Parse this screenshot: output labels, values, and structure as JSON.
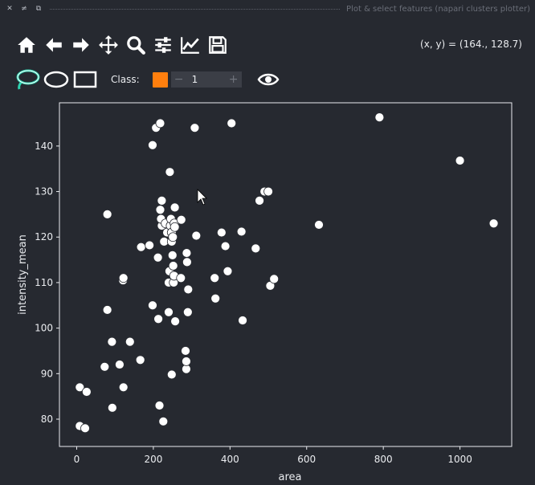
{
  "window": {
    "title": "Plot & select features (napari clusters plotter)",
    "buttons": [
      "✕",
      "≠",
      "⧉"
    ]
  },
  "toolbar": {
    "tools": [
      "home-icon",
      "back-arrow-icon",
      "forward-arrow-icon",
      "pan-icon",
      "zoom-icon",
      "configure-subplots-icon",
      "edit-axis-icon",
      "save-icon"
    ]
  },
  "status": {
    "coords": "(x, y) = (164., 128.7)"
  },
  "selection": {
    "tools": [
      "lasso-icon",
      "ellipse-icon",
      "rectangle-icon"
    ],
    "class_label": "Class:",
    "class_color": "#ff7f0e",
    "class_value": "1",
    "minus": "−",
    "plus": "+"
  },
  "chart_data": {
    "type": "scatter",
    "title": "",
    "xlabel": "area",
    "ylabel": "intensity_mean",
    "xlim": [
      -45,
      1135
    ],
    "ylim": [
      74,
      149.5
    ],
    "xticks": [
      0,
      200,
      400,
      600,
      800,
      1000
    ],
    "yticks": [
      80,
      90,
      100,
      110,
      120,
      130,
      140
    ],
    "grid": false,
    "point_color": "#ffffff",
    "points": [
      [
        8,
        87
      ],
      [
        26,
        86
      ],
      [
        8,
        78.5
      ],
      [
        22,
        78
      ],
      [
        80,
        125
      ],
      [
        80,
        104
      ],
      [
        73,
        91.5
      ],
      [
        92,
        97
      ],
      [
        93,
        82.5
      ],
      [
        112,
        92
      ],
      [
        122,
        87
      ],
      [
        121,
        110.5
      ],
      [
        122,
        111
      ],
      [
        139,
        97
      ],
      [
        166,
        93
      ],
      [
        168,
        117.8
      ],
      [
        190,
        118.2
      ],
      [
        198,
        140.2
      ],
      [
        198,
        105
      ],
      [
        207,
        144
      ],
      [
        218,
        145
      ],
      [
        212,
        115.5
      ],
      [
        213,
        102
      ],
      [
        216,
        83
      ],
      [
        222,
        122.5
      ],
      [
        218,
        126
      ],
      [
        220,
        124
      ],
      [
        222,
        128
      ],
      [
        226,
        79.5
      ],
      [
        228,
        119
      ],
      [
        232,
        123
      ],
      [
        236,
        121
      ],
      [
        240,
        103.5
      ],
      [
        240,
        110
      ],
      [
        242,
        112.5
      ],
      [
        243,
        134.3
      ],
      [
        245,
        122.5
      ],
      [
        246,
        124
      ],
      [
        248,
        119
      ],
      [
        248,
        121
      ],
      [
        248,
        89.8
      ],
      [
        250,
        116
      ],
      [
        251,
        120
      ],
      [
        252,
        113.7
      ],
      [
        253,
        110
      ],
      [
        254,
        111.5
      ],
      [
        255,
        123
      ],
      [
        256,
        126.5
      ],
      [
        256,
        122.2
      ],
      [
        257,
        101.5
      ],
      [
        272,
        111
      ],
      [
        273,
        123.8
      ],
      [
        284,
        95
      ],
      [
        286,
        91
      ],
      [
        286,
        92.7
      ],
      [
        287,
        116.5
      ],
      [
        288,
        114.5
      ],
      [
        290,
        103.5
      ],
      [
        291,
        108.5
      ],
      [
        308,
        144
      ],
      [
        312,
        120.3
      ],
      [
        360,
        111
      ],
      [
        362,
        106.5
      ],
      [
        378,
        121
      ],
      [
        388,
        118
      ],
      [
        394,
        112.5
      ],
      [
        404,
        145
      ],
      [
        430,
        121.2
      ],
      [
        433,
        101.7
      ],
      [
        467,
        117.5
      ],
      [
        477,
        128
      ],
      [
        490,
        130
      ],
      [
        500,
        130
      ],
      [
        505,
        109.3
      ],
      [
        515,
        110.8
      ],
      [
        632,
        122.7
      ],
      [
        790,
        146.3
      ],
      [
        1000,
        136.8
      ],
      [
        1088,
        123
      ]
    ]
  }
}
